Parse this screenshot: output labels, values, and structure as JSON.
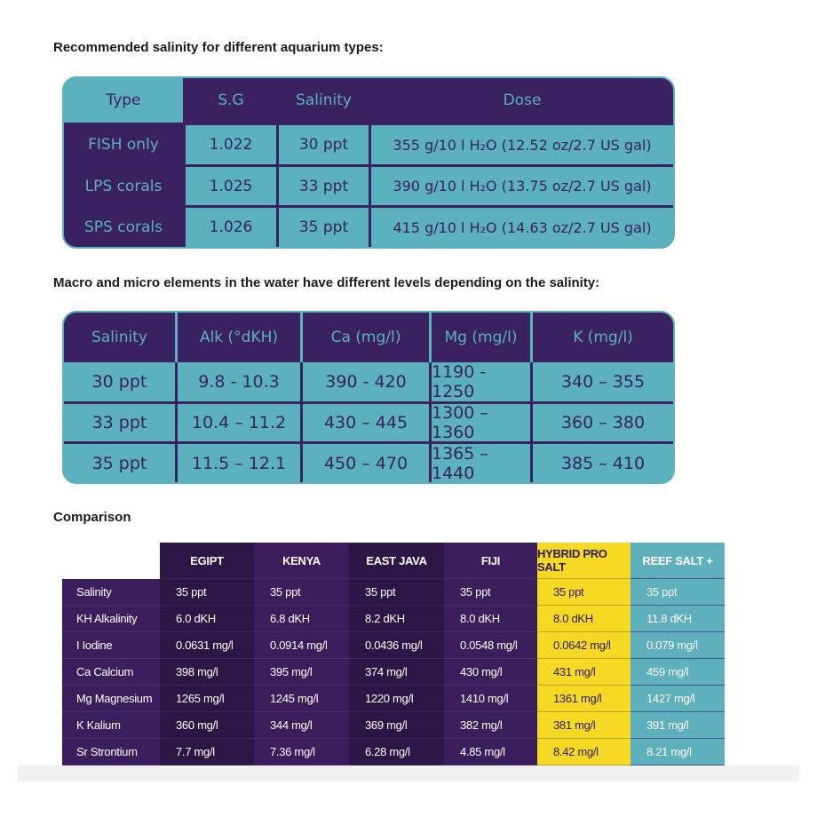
{
  "headings": {
    "salinity": "Recommended salinity for different aquarium types:",
    "elements": "Macro and micro elements in the water have different levels depending on the salinity:",
    "comparison": "Comparison"
  },
  "table1": {
    "headers": [
      "Type",
      "S.G",
      "Salinity",
      "Dose"
    ],
    "rows": [
      [
        "FISH only",
        "1.022",
        "30 ppt",
        "355 g/10 l H₂O (12.52 oz/2.7 US gal)"
      ],
      [
        "LPS corals",
        "1.025",
        "33 ppt",
        "390 g/10 l H₂O (13.75 oz/2.7 US gal)"
      ],
      [
        "SPS corals",
        "1.026",
        "35 ppt",
        "415 g/10 l H₂O (14.63 oz/2.7 US gal)"
      ]
    ]
  },
  "table2": {
    "headers": [
      "Salinity",
      "Alk (°dKH)",
      "Ca (mg/l)",
      "Mg (mg/l)",
      "K (mg/l)"
    ],
    "rows": [
      [
        "30 ppt",
        "9.8 - 10.3",
        "390 - 420",
        "1190 - 1250",
        "340 – 355"
      ],
      [
        "33 ppt",
        "10.4 – 11.2",
        "430 – 445",
        "1300 – 1360",
        "360 – 380"
      ],
      [
        "35 ppt",
        "11.5 – 12.1",
        "450 – 470",
        "1365 – 1440",
        "385 – 410"
      ]
    ]
  },
  "table3": {
    "headers": [
      "EGIPT",
      "KENYA",
      "EAST JAVA",
      "FIJI",
      "HYBRID PRO SALT",
      "REEF SALT +"
    ],
    "rows": [
      {
        "label": "Salinity",
        "values": [
          "35 ppt",
          "35 ppt",
          "35 ppt",
          "35 ppt",
          "35 ppt",
          "35 ppt"
        ]
      },
      {
        "label": "KH Alkalinity",
        "values": [
          "6.0 dKH",
          "6.8 dKH",
          "8.2 dKH",
          "8.0 dKH",
          "8.0 dKH",
          "11.8 dKH"
        ]
      },
      {
        "label": "I Iodine",
        "values": [
          "0.0631 mg/l",
          "0.0914 mg/l",
          "0.0436 mg/l",
          "0.0548 mg/l",
          "0.0642 mg/l",
          "0.079 mg/l"
        ]
      },
      {
        "label": "Ca Calcium",
        "values": [
          "398 mg/l",
          "395 mg/l",
          "374 mg/l",
          "430 mg/l",
          "431 mg/l",
          "459 mg/l"
        ]
      },
      {
        "label": "Mg Magnesium",
        "values": [
          "1265 mg/l",
          "1245 mg/l",
          "1220 mg/l",
          "1410 mg/l",
          "1361 mg/l",
          "1427 mg/l"
        ]
      },
      {
        "label": "K Kalium",
        "values": [
          "360 mg/l",
          "344 mg/l",
          "369 mg/l",
          "382 mg/l",
          "381 mg/l",
          "391 mg/l"
        ]
      },
      {
        "label": "Sr Strontium",
        "values": [
          "7.7 mg/l",
          "7.36 mg/l",
          "6.28 mg/l",
          "4.85 mg/l",
          "8.42 mg/l",
          "8.21 mg/l"
        ]
      }
    ]
  },
  "colors": {
    "purple": "#3a2160",
    "teal": "#5bb1bd",
    "yellow": "#f5d922"
  }
}
